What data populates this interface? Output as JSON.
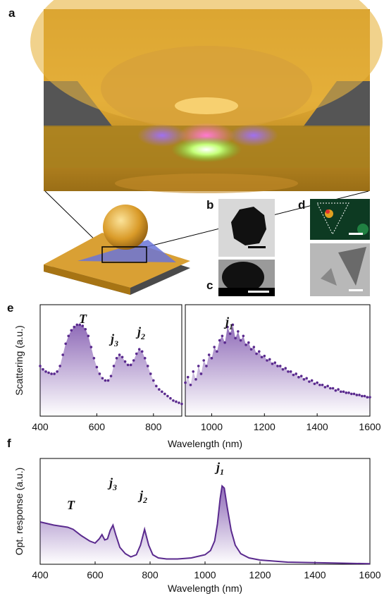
{
  "panel_labels": [
    "a",
    "b",
    "c",
    "d",
    "e",
    "f"
  ],
  "chart_data": [
    {
      "type": "scatter",
      "xlabel": "Wavelength (nm)",
      "ylabel": "Scattering (a.u.)",
      "color": "#5a2a8e",
      "xlim": [
        400,
        900
      ],
      "xticks": [
        400,
        600,
        800
      ],
      "ylim": [
        0,
        1
      ],
      "annotations": [
        {
          "text": "T"
        },
        {
          "text": "j",
          "sub": "3"
        },
        {
          "text": "j",
          "sub": "2"
        }
      ],
      "x": [
        400,
        410,
        420,
        430,
        440,
        450,
        460,
        470,
        480,
        490,
        500,
        510,
        520,
        530,
        540,
        550,
        560,
        570,
        580,
        590,
        600,
        610,
        620,
        630,
        640,
        650,
        660,
        670,
        680,
        690,
        700,
        710,
        720,
        730,
        740,
        750,
        760,
        770,
        780,
        790,
        800,
        810,
        820,
        830,
        840,
        850,
        860,
        870,
        880,
        890,
        900
      ],
      "values": [
        0.45,
        0.42,
        0.4,
        0.39,
        0.38,
        0.38,
        0.4,
        0.45,
        0.55,
        0.65,
        0.72,
        0.77,
        0.8,
        0.82,
        0.82,
        0.81,
        0.78,
        0.72,
        0.62,
        0.52,
        0.44,
        0.38,
        0.34,
        0.32,
        0.32,
        0.36,
        0.45,
        0.52,
        0.55,
        0.53,
        0.49,
        0.46,
        0.46,
        0.5,
        0.56,
        0.6,
        0.58,
        0.52,
        0.45,
        0.38,
        0.32,
        0.27,
        0.24,
        0.22,
        0.2,
        0.18,
        0.16,
        0.14,
        0.13,
        0.12,
        0.11
      ]
    },
    {
      "type": "scatter",
      "color": "#5a2a8e",
      "xlim": [
        900,
        1600
      ],
      "xticks": [
        1000,
        1200,
        1400,
        1600
      ],
      "ylim": [
        0,
        1
      ],
      "annotations": [
        {
          "text": "j",
          "sub": "1"
        }
      ],
      "x": [
        900,
        910,
        920,
        930,
        940,
        950,
        960,
        970,
        980,
        990,
        1000,
        1010,
        1020,
        1030,
        1040,
        1050,
        1060,
        1070,
        1080,
        1090,
        1100,
        1110,
        1120,
        1130,
        1140,
        1150,
        1160,
        1170,
        1180,
        1190,
        1200,
        1210,
        1220,
        1230,
        1240,
        1250,
        1260,
        1270,
        1280,
        1290,
        1300,
        1310,
        1320,
        1330,
        1340,
        1350,
        1360,
        1370,
        1380,
        1390,
        1400,
        1410,
        1420,
        1430,
        1440,
        1450,
        1460,
        1470,
        1480,
        1490,
        1500,
        1510,
        1520,
        1530,
        1540,
        1550,
        1560,
        1570,
        1580,
        1590,
        1600
      ],
      "values": [
        0.3,
        0.35,
        0.28,
        0.4,
        0.33,
        0.45,
        0.38,
        0.5,
        0.45,
        0.55,
        0.52,
        0.62,
        0.58,
        0.68,
        0.72,
        0.66,
        0.8,
        0.74,
        0.82,
        0.7,
        0.76,
        0.68,
        0.72,
        0.64,
        0.66,
        0.6,
        0.62,
        0.56,
        0.58,
        0.53,
        0.54,
        0.5,
        0.51,
        0.47,
        0.48,
        0.45,
        0.45,
        0.42,
        0.43,
        0.4,
        0.4,
        0.37,
        0.38,
        0.35,
        0.36,
        0.33,
        0.34,
        0.31,
        0.32,
        0.29,
        0.3,
        0.28,
        0.28,
        0.26,
        0.27,
        0.25,
        0.25,
        0.23,
        0.24,
        0.22,
        0.22,
        0.21,
        0.21,
        0.2,
        0.2,
        0.19,
        0.19,
        0.18,
        0.18,
        0.17,
        0.17
      ]
    },
    {
      "type": "line",
      "xlabel": "Wavelength (nm)",
      "ylabel": "Opt. response (a.u.)",
      "color": "#5a2a8e",
      "xlim": [
        400,
        1600
      ],
      "xticks": [
        400,
        600,
        800,
        1000,
        1200,
        1400,
        1600
      ],
      "ylim": [
        0,
        1
      ],
      "annotations": [
        {
          "text": "T"
        },
        {
          "text": "j",
          "sub": "3"
        },
        {
          "text": "j",
          "sub": "2"
        },
        {
          "text": "j",
          "sub": "1"
        }
      ],
      "x": [
        400,
        450,
        500,
        520,
        550,
        580,
        600,
        615,
        625,
        635,
        645,
        655,
        665,
        675,
        690,
        710,
        730,
        750,
        765,
        780,
        795,
        810,
        830,
        860,
        900,
        950,
        1000,
        1020,
        1035,
        1045,
        1055,
        1062,
        1070,
        1080,
        1095,
        1110,
        1130,
        1160,
        1200,
        1250,
        1300,
        1400,
        1500,
        1600
      ],
      "values": [
        0.4,
        0.37,
        0.35,
        0.33,
        0.27,
        0.22,
        0.2,
        0.24,
        0.28,
        0.23,
        0.24,
        0.32,
        0.37,
        0.28,
        0.16,
        0.1,
        0.07,
        0.09,
        0.18,
        0.33,
        0.18,
        0.09,
        0.06,
        0.05,
        0.05,
        0.06,
        0.09,
        0.13,
        0.22,
        0.38,
        0.62,
        0.74,
        0.72,
        0.55,
        0.32,
        0.18,
        0.1,
        0.06,
        0.04,
        0.03,
        0.02,
        0.015,
        0.01,
        0.005
      ]
    }
  ]
}
